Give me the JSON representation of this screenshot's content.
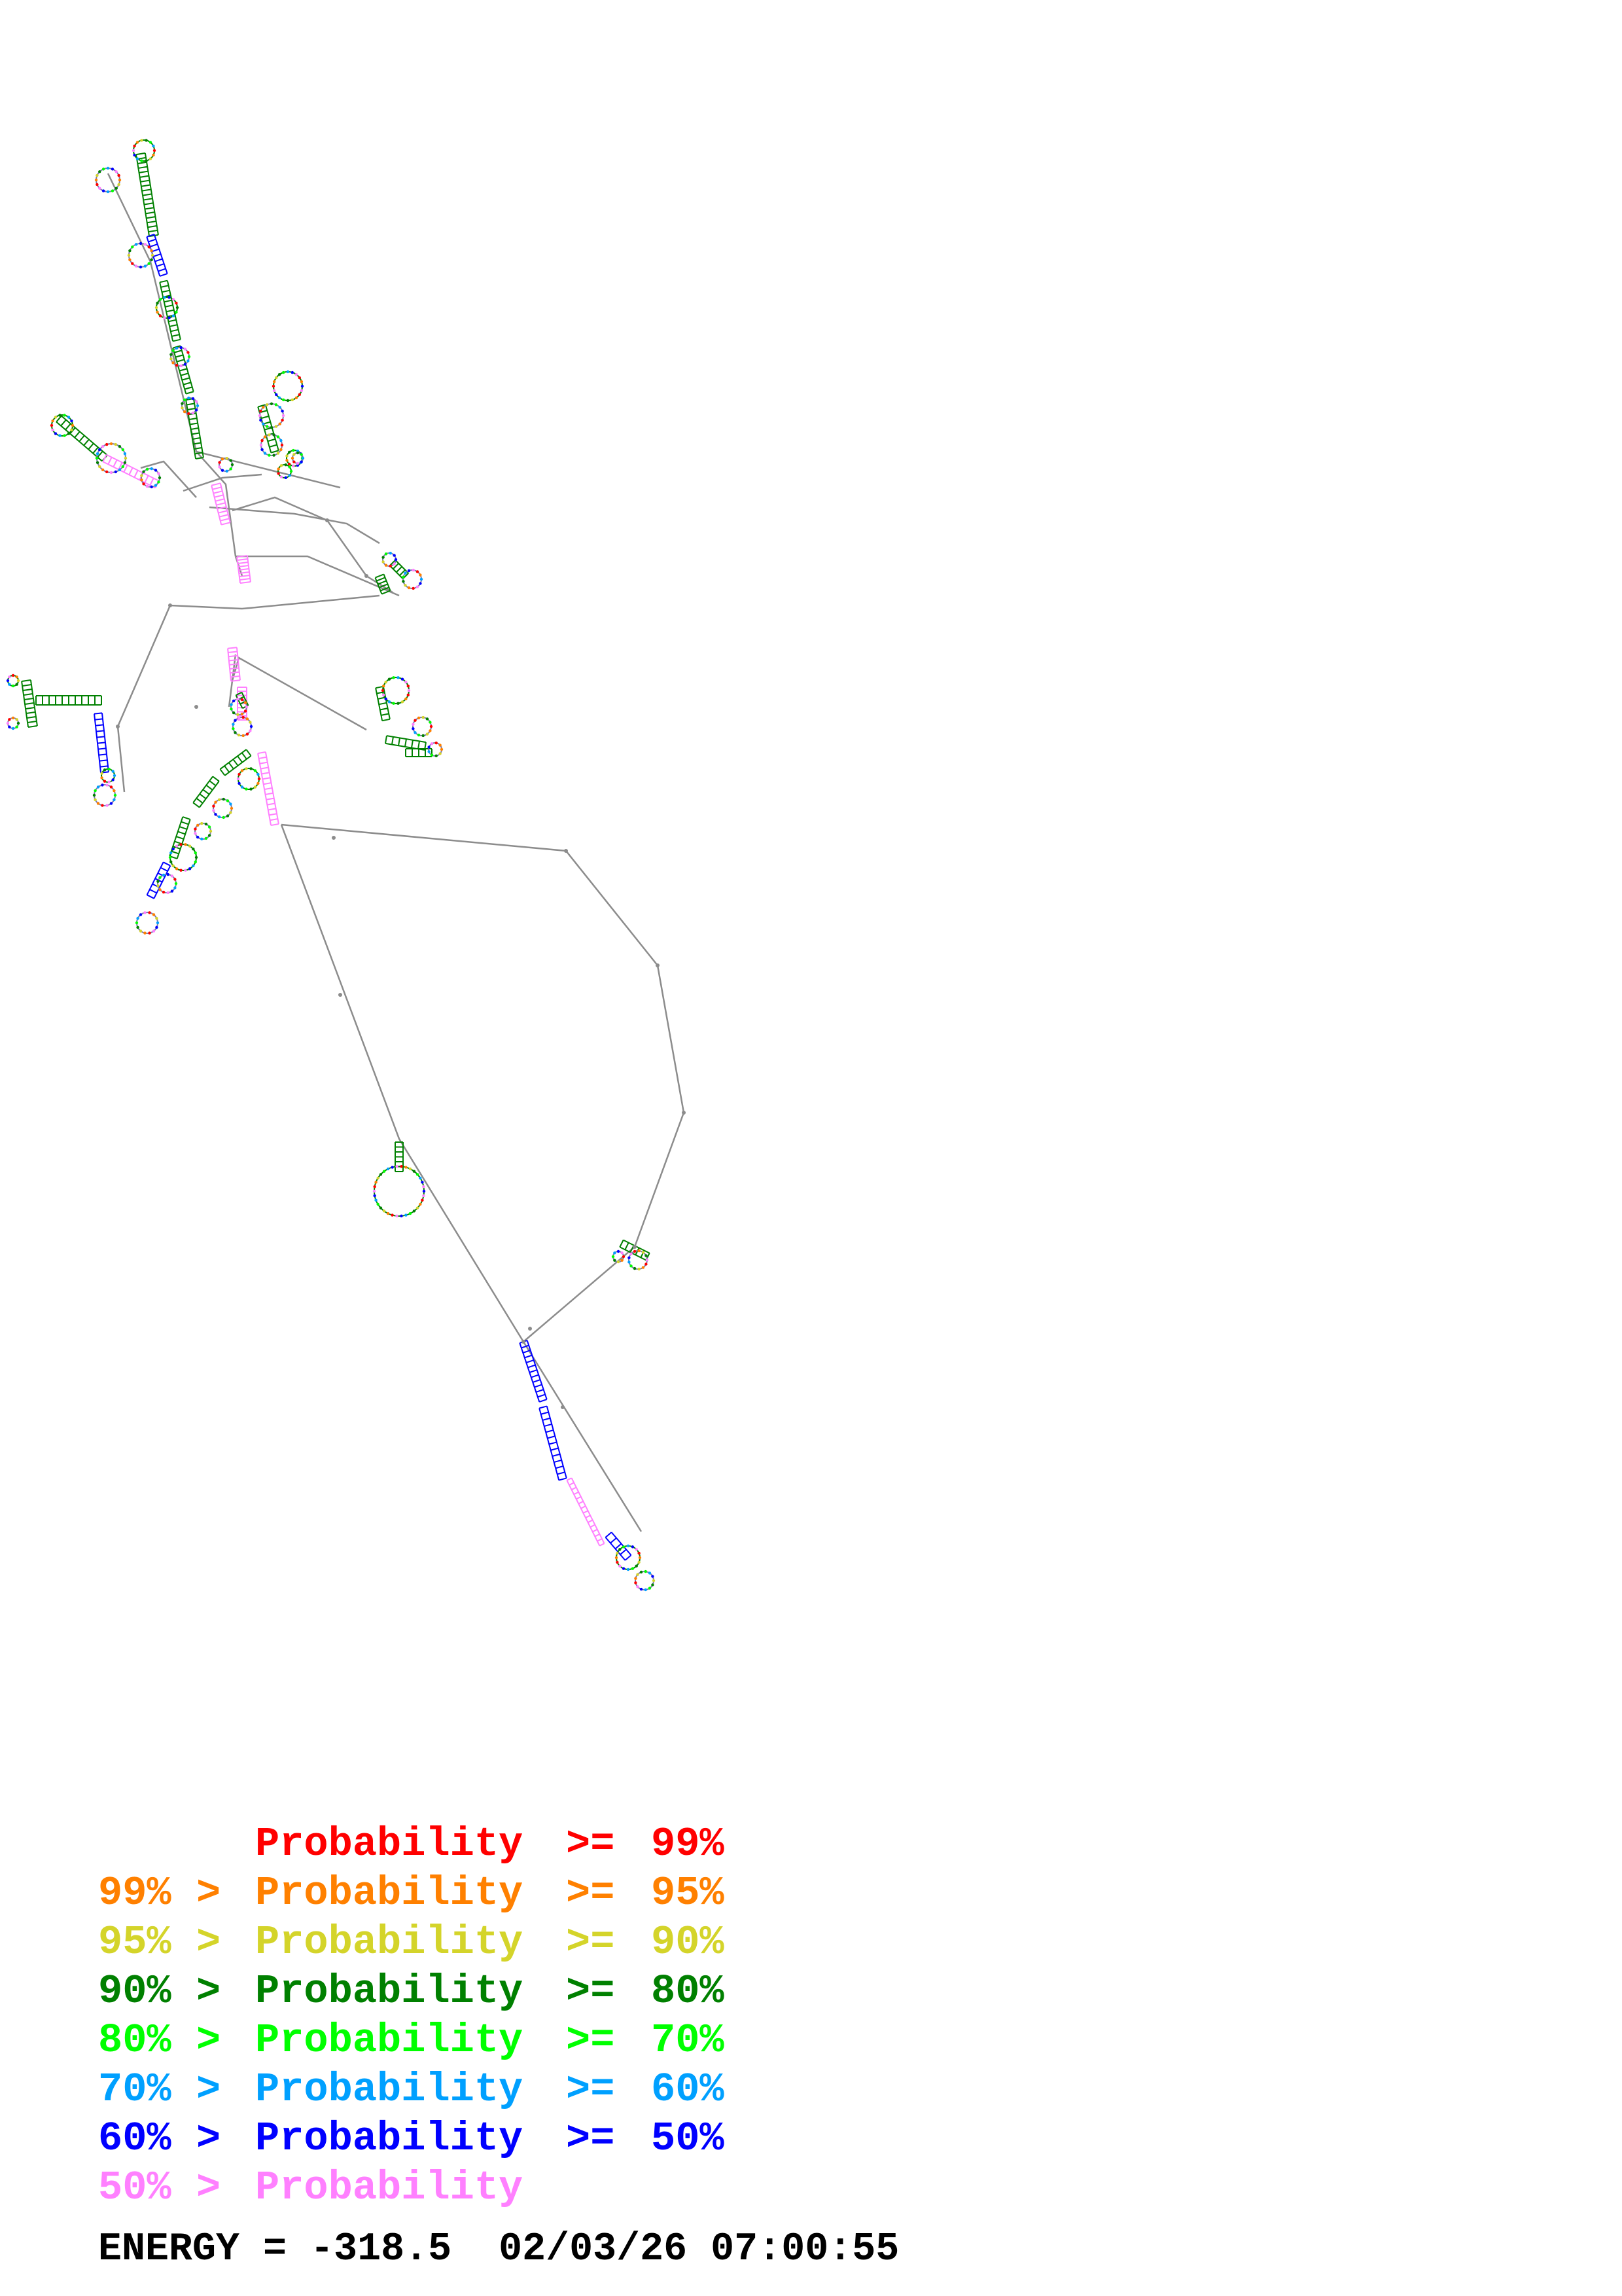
{
  "legend": {
    "rows": [
      {
        "color": "#ff0000",
        "lower": "",
        "op1": "",
        "label": "Probability",
        "op2": ">=",
        "upper": "99%"
      },
      {
        "color": "#ff8000",
        "lower": "99%",
        "op1": ">",
        "label": "Probability",
        "op2": ">=",
        "upper": "95%"
      },
      {
        "color": "#d4d42a",
        "lower": "95%",
        "op1": ">",
        "label": "Probability",
        "op2": ">=",
        "upper": "90%"
      },
      {
        "color": "#008000",
        "lower": "90%",
        "op1": ">",
        "label": "Probability",
        "op2": ">=",
        "upper": "80%"
      },
      {
        "color": "#00ff00",
        "lower": "80%",
        "op1": ">",
        "label": "Probability",
        "op2": ">=",
        "upper": "70%"
      },
      {
        "color": "#00a0ff",
        "lower": "70%",
        "op1": ">",
        "label": "Probability",
        "op2": ">=",
        "upper": "60%"
      },
      {
        "color": "#0000ff",
        "lower": "60%",
        "op1": ">",
        "label": "Probability",
        "op2": ">=",
        "upper": "50%"
      },
      {
        "color": "#ff80ff",
        "lower": "50%",
        "op1": ">",
        "label": "Probability",
        "op2": "",
        "upper": ""
      }
    ]
  },
  "footer": {
    "energy_label": "ENERGY = ",
    "energy_value": "-318.5",
    "timestamp": "02/03/26 07:00:55"
  },
  "colors": {
    "backbone": "#8c8c8c",
    "pair_default": "#7a7aa8"
  }
}
